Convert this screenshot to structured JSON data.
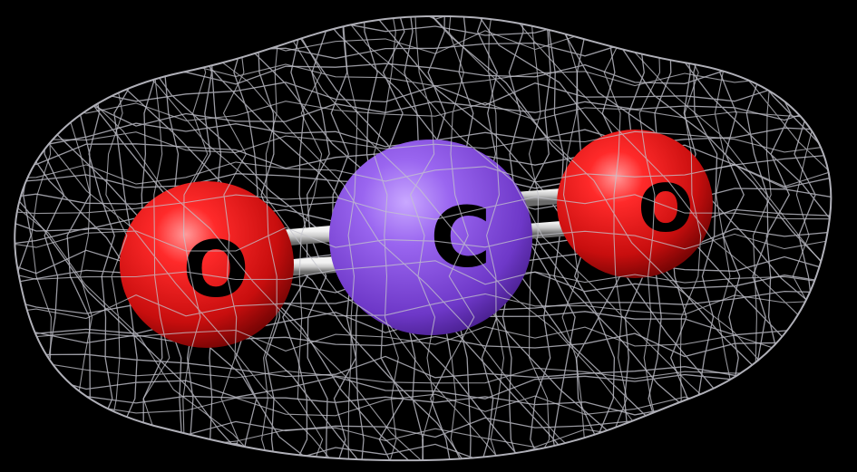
{
  "molecule": {
    "atoms": [
      {
        "id": "oxygen-left",
        "label": "O",
        "element": "oxygen",
        "color": "#e01818"
      },
      {
        "id": "carbon-center",
        "label": "C",
        "element": "carbon",
        "color": "#8a55e0"
      },
      {
        "id": "oxygen-right",
        "label": "O",
        "element": "oxygen",
        "color": "#e01818"
      }
    ],
    "bonds": [
      {
        "from": "oxygen-left",
        "to": "carbon-center",
        "order": 2
      },
      {
        "from": "carbon-center",
        "to": "oxygen-right",
        "order": 2
      }
    ],
    "bond_color": "#c8c8c8",
    "mesh_color": "#b8b8c0",
    "background_color": "#000000"
  }
}
